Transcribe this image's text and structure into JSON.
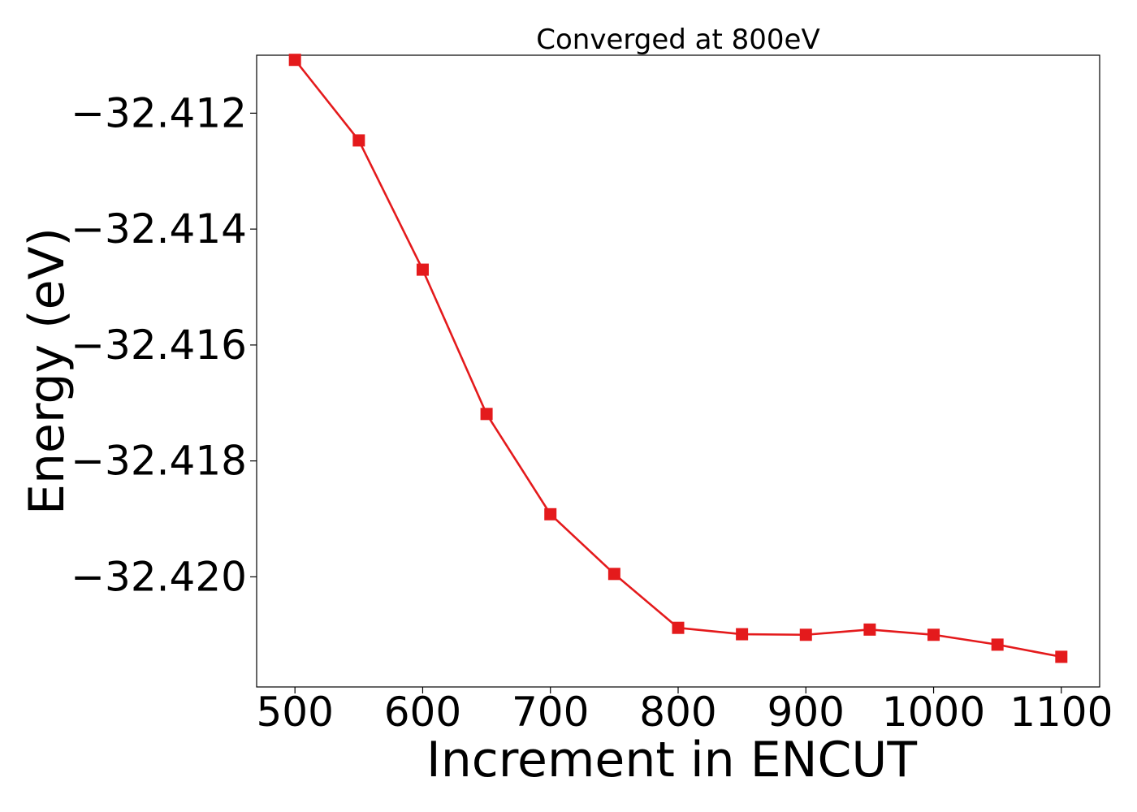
{
  "chart_data": {
    "type": "line",
    "title": "Converged at 800eV",
    "xlabel": "Increment in ENCUT",
    "ylabel": "Energy (eV)",
    "xlim": [
      470,
      1130
    ],
    "ylim": [
      -32.4219,
      -32.411
    ],
    "xticks": [
      500,
      600,
      700,
      800,
      900,
      1000,
      1100
    ],
    "xtick_labels": [
      "500",
      "600",
      "700",
      "800",
      "900",
      "1000",
      "1100"
    ],
    "yticks": [
      -32.412,
      -32.414,
      -32.416,
      -32.418,
      -32.42
    ],
    "ytick_labels": [
      "−32.412",
      "−32.414",
      "−32.416",
      "−32.418",
      "−32.420"
    ],
    "grid": false,
    "series": [
      {
        "color": "#e41a1c",
        "marker": "square",
        "x": [
          500,
          550,
          600,
          650,
          700,
          750,
          800,
          850,
          900,
          950,
          1000,
          1050,
          1100
        ],
        "y": [
          -32.41108,
          -32.41247,
          -32.4147,
          -32.41719,
          -32.41892,
          -32.41995,
          -32.42088,
          -32.42099,
          -32.421,
          -32.42091,
          -32.421,
          -32.42117,
          -32.42138
        ]
      }
    ]
  }
}
